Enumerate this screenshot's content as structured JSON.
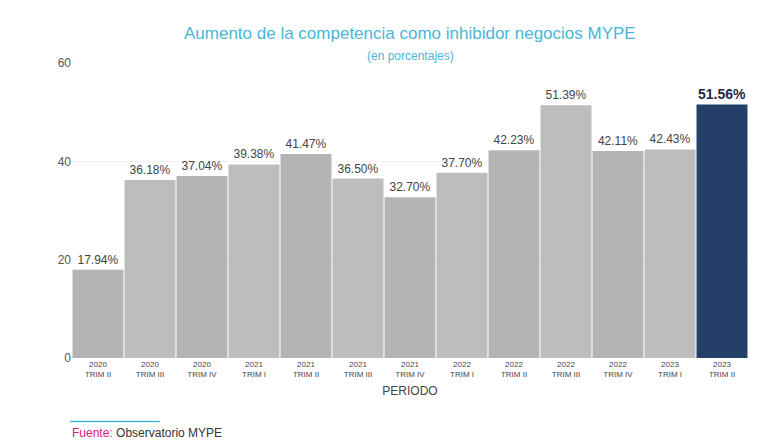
{
  "chart_data": {
    "type": "bar",
    "title": "Aumento de la competencia como inhibidor negocios MYPE",
    "subtitle": "(en porcentajes)",
    "x_label": "PERIODO",
    "source_label": "Fuente:",
    "source": "Observatorio MYPE",
    "categories": [
      "2020\nTRIM II",
      "2020\nTRIM III",
      "2020\nTRIM IV",
      "2021\nTRIM I",
      "2021\nTRIM II",
      "2021\nTRIM III",
      "2021\nTRIM IV",
      "2022\nTRIM I",
      "2022\nTRIM II",
      "2022\nTRIM III",
      "2022\nTRIM IV",
      "2023\nTRIM I",
      "2023\nTRIM II"
    ],
    "values": [
      17.94,
      36.18,
      37.04,
      39.38,
      41.47,
      36.5,
      32.7,
      37.7,
      42.23,
      51.39,
      42.11,
      42.43,
      51.56
    ],
    "value_labels": [
      "17.94%",
      "36.18%",
      "37.04%",
      "39.38%",
      "41.47%",
      "36.50%",
      "32.70%",
      "37.70%",
      "42.23%",
      "51.39%",
      "42.11%",
      "42.43%",
      "51.56%"
    ],
    "colors": [
      "#b4b4b4",
      "#bdbdbd",
      "#b4b4b4",
      "#bdbdbd",
      "#b4b4b4",
      "#bdbdbd",
      "#b4b4b4",
      "#bdbdbd",
      "#b4b4b4",
      "#bdbdbd",
      "#b4b4b4",
      "#bdbdbd",
      "#253f6b"
    ],
    "data_labels": true,
    "ylim": [
      0,
      60
    ],
    "yticks": [
      0,
      20,
      40,
      60
    ],
    "grid": true
  }
}
